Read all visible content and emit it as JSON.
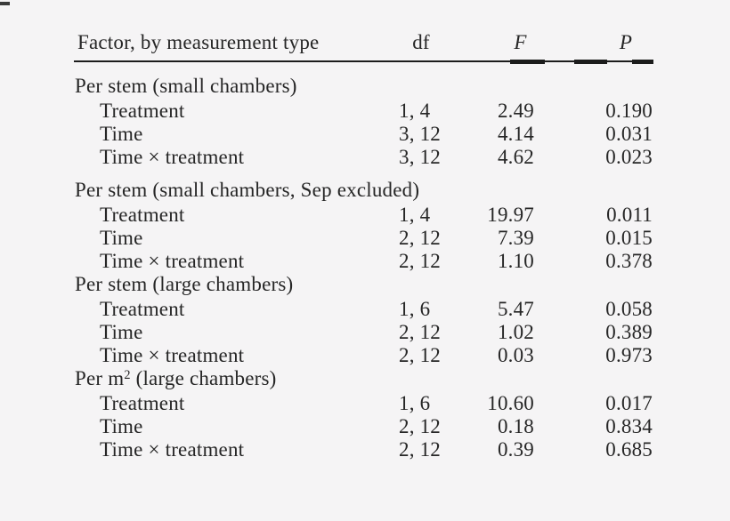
{
  "page": {
    "background_color": "#f5f4f5",
    "text_color": "#262626",
    "rule_color": "#1c1c1c"
  },
  "table": {
    "columns": [
      {
        "label": "Factor, by measurement type",
        "italic": false
      },
      {
        "label": "df",
        "italic": false
      },
      {
        "label": "F",
        "italic": true
      },
      {
        "label": "P",
        "italic": true
      }
    ],
    "sections": [
      {
        "title": "Per stem (small chambers)",
        "rows": [
          {
            "factor": "Treatment",
            "df": "1, 4",
            "F": "2.49",
            "P": "0.190"
          },
          {
            "factor": "Time",
            "df": "3, 12",
            "F": "4.14",
            "P": "0.031"
          },
          {
            "factor": "Time × treatment",
            "df": "3, 12",
            "F": "4.62",
            "P": "0.023"
          }
        ]
      },
      {
        "title": "Per stem (small chambers, Sep excluded)",
        "rows": [
          {
            "factor": "Treatment",
            "df": "1, 4",
            "F": "19.97",
            "P": "0.011"
          },
          {
            "factor": "Time",
            "df": "2, 12",
            "F": "7.39",
            "P": "0.015"
          },
          {
            "factor": "Time × treatment",
            "df": "2, 12",
            "F": "1.10",
            "P": "0.378"
          }
        ]
      },
      {
        "title": "Per stem (large chambers)",
        "rows": [
          {
            "factor": "Treatment",
            "df": "1, 6",
            "F": "5.47",
            "P": "0.058"
          },
          {
            "factor": "Time",
            "df": "2, 12",
            "F": "1.02",
            "P": "0.389"
          },
          {
            "factor": "Time × treatment",
            "df": "2, 12",
            "F": "0.03",
            "P": "0.973"
          }
        ]
      },
      {
        "title_parts": {
          "pre": "Per m",
          "sup": "2",
          "post": " (large chambers)"
        },
        "rows": [
          {
            "factor": "Treatment",
            "df": "1, 6",
            "F": "10.60",
            "P": "0.017"
          },
          {
            "factor": "Time",
            "df": "2, 12",
            "F": "0.18",
            "P": "0.834"
          },
          {
            "factor": "Time × treatment",
            "df": "2, 12",
            "F": "0.39",
            "P": "0.685"
          }
        ]
      }
    ]
  }
}
